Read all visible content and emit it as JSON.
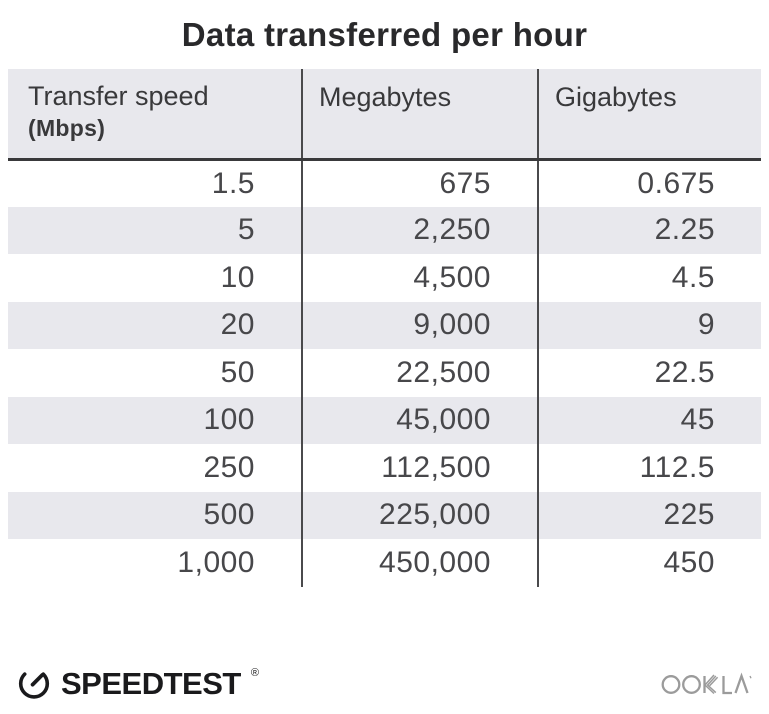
{
  "title": "Data transferred per hour",
  "table": {
    "columns": [
      {
        "label": "Transfer speed",
        "sublabel": "(Mbps)"
      },
      {
        "label": "Megabytes"
      },
      {
        "label": "Gigabytes"
      }
    ],
    "rows": [
      [
        "1.5",
        "675",
        "0.675"
      ],
      [
        "5",
        "2,250",
        "2.25"
      ],
      [
        "10",
        "4,500",
        "4.5"
      ],
      [
        "20",
        "9,000",
        "9"
      ],
      [
        "50",
        "22,500",
        "22.5"
      ],
      [
        "100",
        "45,000",
        "45"
      ],
      [
        "250",
        "112,500",
        "112.5"
      ],
      [
        "500",
        "225,000",
        "225"
      ],
      [
        "1,000",
        "450,000",
        "450"
      ]
    ]
  },
  "footer": {
    "brand": "SPEEDTEST",
    "brand_mark": "®",
    "company": "OOKLA"
  },
  "colors": {
    "row_alt": "#e8e8ed",
    "header_bg": "#e8e8ed",
    "divider": "#4a4a4c",
    "header_border": "#39393b",
    "text_dark": "#29292b",
    "text_body": "#47474a",
    "logo_dark": "#1a1a1c",
    "ookla_gray": "#9b9b9b"
  },
  "chart_data": {
    "type": "table",
    "title": "Data transferred per hour",
    "columns": [
      "Transfer speed (Mbps)",
      "Megabytes",
      "Gigabytes"
    ],
    "rows": [
      [
        1.5,
        675,
        0.675
      ],
      [
        5,
        2250,
        2.25
      ],
      [
        10,
        4500,
        4.5
      ],
      [
        20,
        9000,
        9
      ],
      [
        50,
        22500,
        22.5
      ],
      [
        100,
        45000,
        45
      ],
      [
        250,
        112500,
        112.5
      ],
      [
        500,
        225000,
        225
      ],
      [
        1000,
        450000,
        450
      ]
    ]
  }
}
